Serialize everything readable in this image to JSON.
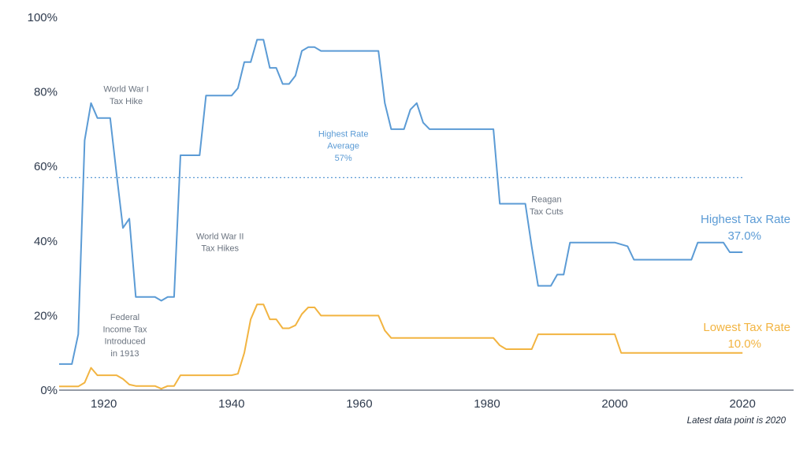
{
  "chart_data": {
    "type": "line",
    "xlim": [
      1913,
      2028
    ],
    "ylim": [
      0,
      100
    ],
    "x_ticks": [
      {
        "value": 1920,
        "label": "1920"
      },
      {
        "value": 1940,
        "label": "1940"
      },
      {
        "value": 1960,
        "label": "1960"
      },
      {
        "value": 1980,
        "label": "1980"
      },
      {
        "value": 2000,
        "label": "2000"
      },
      {
        "value": 2020,
        "label": "2020"
      }
    ],
    "y_ticks": [
      {
        "value": 0,
        "label": "0%"
      },
      {
        "value": 20,
        "label": "20%"
      },
      {
        "value": 40,
        "label": "40%"
      },
      {
        "value": 60,
        "label": "60%"
      },
      {
        "value": 80,
        "label": "80%"
      },
      {
        "value": 100,
        "label": "100%"
      }
    ],
    "grid": false,
    "series": [
      {
        "name": "Highest Tax Rate",
        "end_label": "37.0%",
        "color": "#5b9bd5",
        "points": [
          [
            1913,
            7
          ],
          [
            1915,
            7
          ],
          [
            1916,
            15
          ],
          [
            1917,
            67
          ],
          [
            1918,
            77
          ],
          [
            1919,
            73
          ],
          [
            1921,
            73
          ],
          [
            1922,
            58
          ],
          [
            1923,
            43.5
          ],
          [
            1924,
            46
          ],
          [
            1925,
            25
          ],
          [
            1928,
            25
          ],
          [
            1929,
            24
          ],
          [
            1930,
            25
          ],
          [
            1931,
            25
          ],
          [
            1932,
            63
          ],
          [
            1935,
            63
          ],
          [
            1936,
            79
          ],
          [
            1940,
            79
          ],
          [
            1941,
            81
          ],
          [
            1942,
            88
          ],
          [
            1943,
            88
          ],
          [
            1944,
            94
          ],
          [
            1945,
            94
          ],
          [
            1946,
            86.45
          ],
          [
            1947,
            86.45
          ],
          [
            1948,
            82.13
          ],
          [
            1949,
            82.13
          ],
          [
            1950,
            84.36
          ],
          [
            1951,
            91
          ],
          [
            1952,
            92
          ],
          [
            1953,
            92
          ],
          [
            1954,
            91
          ],
          [
            1963,
            91
          ],
          [
            1964,
            77
          ],
          [
            1965,
            70
          ],
          [
            1967,
            70
          ],
          [
            1968,
            75.25
          ],
          [
            1969,
            77
          ],
          [
            1970,
            71.75
          ],
          [
            1971,
            70
          ],
          [
            1981,
            70
          ],
          [
            1982,
            50
          ],
          [
            1986,
            50
          ],
          [
            1987,
            38.5
          ],
          [
            1988,
            28
          ],
          [
            1990,
            28
          ],
          [
            1991,
            31
          ],
          [
            1992,
            31
          ],
          [
            1993,
            39.6
          ],
          [
            2000,
            39.6
          ],
          [
            2001,
            39.1
          ],
          [
            2002,
            38.6
          ],
          [
            2003,
            35
          ],
          [
            2012,
            35
          ],
          [
            2013,
            39.6
          ],
          [
            2017,
            39.6
          ],
          [
            2018,
            37
          ],
          [
            2020,
            37
          ]
        ]
      },
      {
        "name": "Lowest Tax Rate",
        "end_label": "10.0%",
        "color": "#f2b441",
        "points": [
          [
            1913,
            1
          ],
          [
            1916,
            1
          ],
          [
            1917,
            2
          ],
          [
            1918,
            6
          ],
          [
            1919,
            4
          ],
          [
            1922,
            4
          ],
          [
            1923,
            3
          ],
          [
            1924,
            1.5
          ],
          [
            1925,
            1.125
          ],
          [
            1928,
            1.125
          ],
          [
            1929,
            0.375
          ],
          [
            1930,
            1.125
          ],
          [
            1931,
            1.125
          ],
          [
            1932,
            4
          ],
          [
            1940,
            4
          ],
          [
            1941,
            4.4
          ],
          [
            1942,
            10
          ],
          [
            1943,
            19
          ],
          [
            1944,
            23
          ],
          [
            1945,
            23
          ],
          [
            1946,
            19
          ],
          [
            1947,
            19
          ],
          [
            1948,
            16.6
          ],
          [
            1949,
            16.6
          ],
          [
            1950,
            17.4
          ],
          [
            1951,
            20.4
          ],
          [
            1952,
            22.2
          ],
          [
            1953,
            22.2
          ],
          [
            1954,
            20
          ],
          [
            1963,
            20
          ],
          [
            1964,
            16
          ],
          [
            1965,
            14
          ],
          [
            1981,
            14
          ],
          [
            1982,
            12
          ],
          [
            1983,
            11
          ],
          [
            1987,
            11
          ],
          [
            1988,
            15
          ],
          [
            2000,
            15
          ],
          [
            2001,
            10
          ],
          [
            2020,
            10
          ]
        ]
      }
    ],
    "reference_line": {
      "value": 57,
      "color": "#5b9bd5",
      "style": "dotted"
    },
    "annotations": [
      {
        "lines": [
          "World War I",
          "Tax Hike"
        ],
        "x": 1923.5,
        "y": 80,
        "color": "#6b7480"
      },
      {
        "lines": [
          "Highest Rate",
          "Average",
          "57%"
        ],
        "x": 1957.5,
        "y": 68,
        "color": "#5b9bd5"
      },
      {
        "lines": [
          "Reagan",
          "Tax Cuts"
        ],
        "x": 1989.3,
        "y": 50.4,
        "color": "#6b7480"
      },
      {
        "lines": [
          "World War II",
          "Tax Hikes"
        ],
        "x": 1938.2,
        "y": 40.5,
        "color": "#6b7480"
      },
      {
        "lines": [
          "Federal",
          "Income Tax",
          "Introduced",
          "in 1913"
        ],
        "x": 1923.3,
        "y": 18.8,
        "color": "#6b7480"
      }
    ],
    "footnote": "Latest data point is 2020"
  }
}
